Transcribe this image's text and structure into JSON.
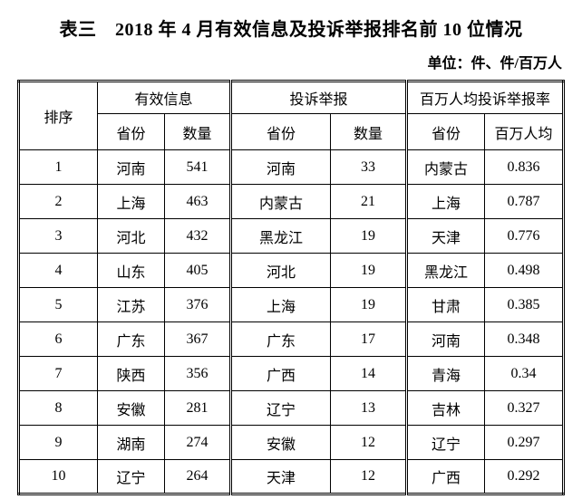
{
  "page": {
    "title": "表三　2018 年 4 月有效信息及投诉举报排名前 10 位情况",
    "unit_note": "单位：件、件/百万人"
  },
  "table": {
    "header": {
      "rank": "排序",
      "groups": [
        {
          "label": "有效信息",
          "sub_province": "省份",
          "sub_value": "数量"
        },
        {
          "label": "投诉举报",
          "sub_province": "省份",
          "sub_value": "数量"
        },
        {
          "label": "百万人均投诉举报率",
          "sub_province": "省份",
          "sub_value": "百万人均"
        }
      ]
    },
    "rows": [
      {
        "rank": "1",
        "valid_province": "河南",
        "valid_count": "541",
        "complaint_province": "河南",
        "complaint_count": "33",
        "rate_province": "内蒙古",
        "rate_value": "0.836"
      },
      {
        "rank": "2",
        "valid_province": "上海",
        "valid_count": "463",
        "complaint_province": "内蒙古",
        "complaint_count": "21",
        "rate_province": "上海",
        "rate_value": "0.787"
      },
      {
        "rank": "3",
        "valid_province": "河北",
        "valid_count": "432",
        "complaint_province": "黑龙江",
        "complaint_count": "19",
        "rate_province": "天津",
        "rate_value": "0.776"
      },
      {
        "rank": "4",
        "valid_province": "山东",
        "valid_count": "405",
        "complaint_province": "河北",
        "complaint_count": "19",
        "rate_province": "黑龙江",
        "rate_value": "0.498"
      },
      {
        "rank": "5",
        "valid_province": "江苏",
        "valid_count": "376",
        "complaint_province": "上海",
        "complaint_count": "19",
        "rate_province": "甘肃",
        "rate_value": "0.385"
      },
      {
        "rank": "6",
        "valid_province": "广东",
        "valid_count": "367",
        "complaint_province": "广东",
        "complaint_count": "17",
        "rate_province": "河南",
        "rate_value": "0.348"
      },
      {
        "rank": "7",
        "valid_province": "陕西",
        "valid_count": "356",
        "complaint_province": "广西",
        "complaint_count": "14",
        "rate_province": "青海",
        "rate_value": "0.34"
      },
      {
        "rank": "8",
        "valid_province": "安徽",
        "valid_count": "281",
        "complaint_province": "辽宁",
        "complaint_count": "13",
        "rate_province": "吉林",
        "rate_value": "0.327"
      },
      {
        "rank": "9",
        "valid_province": "湖南",
        "valid_count": "274",
        "complaint_province": "安徽",
        "complaint_count": "12",
        "rate_province": "辽宁",
        "rate_value": "0.297"
      },
      {
        "rank": "10",
        "valid_province": "辽宁",
        "valid_count": "264",
        "complaint_province": "天津",
        "complaint_count": "12",
        "rate_province": "广西",
        "rate_value": "0.292"
      }
    ]
  }
}
